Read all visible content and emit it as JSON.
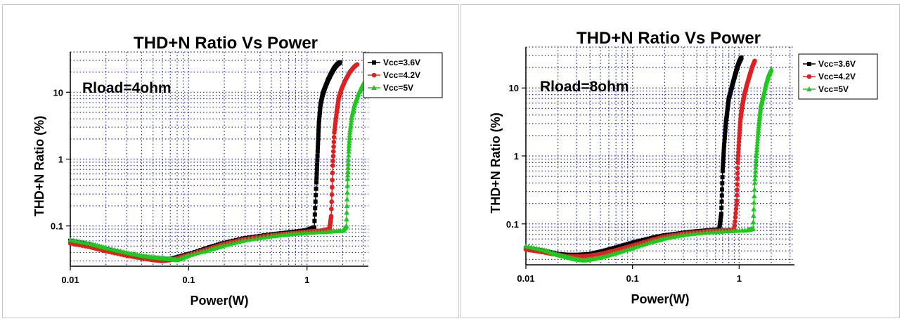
{
  "chart_data": [
    {
      "type": "line",
      "title": "THD+N Ratio Vs Power",
      "annotation": "Rload=4ohm",
      "xlabel": "Power(W)",
      "ylabel": "THD+N Ratio (%)",
      "xscale": "log",
      "yscale": "log",
      "xlim": [
        0.01,
        3.3
      ],
      "ylim": [
        0.025,
        40
      ],
      "xticks": [
        "0.01",
        "0.1",
        "1"
      ],
      "yticks": [
        "0.1",
        "1",
        "10"
      ],
      "grid": true,
      "legend_position": "top-right",
      "series": [
        {
          "name": "Vcc=3.6V",
          "color": "#000000",
          "marker": "square",
          "points": [
            [
              0.01,
              0.06
            ],
            [
              0.015,
              0.052
            ],
            [
              0.02,
              0.045
            ],
            [
              0.03,
              0.038
            ],
            [
              0.04,
              0.034
            ],
            [
              0.05,
              0.033
            ],
            [
              0.06,
              0.032
            ],
            [
              0.07,
              0.032
            ],
            [
              0.08,
              0.034
            ],
            [
              0.1,
              0.038
            ],
            [
              0.15,
              0.048
            ],
            [
              0.2,
              0.056
            ],
            [
              0.3,
              0.066
            ],
            [
              0.5,
              0.075
            ],
            [
              0.7,
              0.08
            ],
            [
              1.0,
              0.087
            ],
            [
              1.15,
              0.095
            ],
            [
              1.2,
              0.45
            ],
            [
              1.23,
              1.3
            ],
            [
              1.26,
              3.5
            ],
            [
              1.3,
              6.5
            ],
            [
              1.35,
              9
            ],
            [
              1.4,
              11
            ],
            [
              1.5,
              15
            ],
            [
              1.6,
              19
            ],
            [
              1.7,
              23
            ],
            [
              1.8,
              26
            ],
            [
              1.9,
              28
            ]
          ]
        },
        {
          "name": "Vcc=4.2V",
          "color": "#e02020",
          "marker": "circle",
          "points": [
            [
              0.01,
              0.055
            ],
            [
              0.015,
              0.048
            ],
            [
              0.02,
              0.042
            ],
            [
              0.03,
              0.036
            ],
            [
              0.04,
              0.033
            ],
            [
              0.05,
              0.031
            ],
            [
              0.06,
              0.03
            ],
            [
              0.07,
              0.031
            ],
            [
              0.08,
              0.033
            ],
            [
              0.1,
              0.037
            ],
            [
              0.15,
              0.046
            ],
            [
              0.2,
              0.054
            ],
            [
              0.3,
              0.064
            ],
            [
              0.5,
              0.073
            ],
            [
              0.7,
              0.077
            ],
            [
              1.0,
              0.082
            ],
            [
              1.3,
              0.085
            ],
            [
              1.55,
              0.09
            ],
            [
              1.6,
              0.14
            ],
            [
              1.65,
              0.8
            ],
            [
              1.7,
              2.5
            ],
            [
              1.78,
              5
            ],
            [
              1.85,
              8
            ],
            [
              1.95,
              11
            ],
            [
              2.1,
              15
            ],
            [
              2.3,
              20
            ],
            [
              2.5,
              24
            ],
            [
              2.65,
              26
            ]
          ]
        },
        {
          "name": "Vcc=5V",
          "color": "#1ec81e",
          "marker": "triangle",
          "points": [
            [
              0.01,
              0.062
            ],
            [
              0.015,
              0.054
            ],
            [
              0.02,
              0.047
            ],
            [
              0.03,
              0.04
            ],
            [
              0.04,
              0.036
            ],
            [
              0.05,
              0.034
            ],
            [
              0.06,
              0.033
            ],
            [
              0.07,
              0.032
            ],
            [
              0.08,
              0.031
            ],
            [
              0.1,
              0.036
            ],
            [
              0.15,
              0.044
            ],
            [
              0.2,
              0.051
            ],
            [
              0.3,
              0.061
            ],
            [
              0.5,
              0.07
            ],
            [
              0.7,
              0.075
            ],
            [
              1.0,
              0.079
            ],
            [
              1.5,
              0.082
            ],
            [
              2.0,
              0.085
            ],
            [
              2.15,
              0.1
            ],
            [
              2.2,
              0.5
            ],
            [
              2.25,
              1.3
            ],
            [
              2.3,
              2.5
            ],
            [
              2.4,
              4.5
            ],
            [
              2.55,
              7
            ],
            [
              2.75,
              10
            ],
            [
              2.95,
              13
            ],
            [
              3.15,
              15
            ]
          ]
        }
      ]
    },
    {
      "type": "line",
      "title": "THD+N Ratio Vs Power",
      "annotation": "Rload=8ohm",
      "xlabel": "Power(W)",
      "ylabel": "THD+N Ratio (%)",
      "xscale": "log",
      "yscale": "log",
      "xlim": [
        0.01,
        3.3
      ],
      "ylim": [
        0.025,
        40
      ],
      "xticks": [
        "0.01",
        "0.1",
        "1"
      ],
      "yticks": [
        "0.1",
        "1",
        "10"
      ],
      "grid": true,
      "legend_position": "top-right",
      "series": [
        {
          "name": "Vcc=3.6V",
          "color": "#000000",
          "marker": "square",
          "points": [
            [
              0.01,
              0.044
            ],
            [
              0.015,
              0.04
            ],
            [
              0.02,
              0.036
            ],
            [
              0.025,
              0.035
            ],
            [
              0.03,
              0.035
            ],
            [
              0.04,
              0.036
            ],
            [
              0.05,
              0.039
            ],
            [
              0.07,
              0.045
            ],
            [
              0.1,
              0.053
            ],
            [
              0.15,
              0.062
            ],
            [
              0.2,
              0.068
            ],
            [
              0.3,
              0.074
            ],
            [
              0.4,
              0.078
            ],
            [
              0.55,
              0.081
            ],
            [
              0.65,
              0.083
            ],
            [
              0.68,
              0.14
            ],
            [
              0.7,
              0.6
            ],
            [
              0.72,
              1.3
            ],
            [
              0.75,
              3
            ],
            [
              0.78,
              5
            ],
            [
              0.8,
              7
            ],
            [
              0.85,
              10
            ],
            [
              0.9,
              14
            ],
            [
              0.95,
              19
            ],
            [
              1.0,
              24
            ],
            [
              1.05,
              28
            ]
          ]
        },
        {
          "name": "Vcc=4.2V",
          "color": "#e02020",
          "marker": "circle",
          "points": [
            [
              0.01,
              0.042
            ],
            [
              0.015,
              0.038
            ],
            [
              0.02,
              0.035
            ],
            [
              0.025,
              0.033
            ],
            [
              0.03,
              0.033
            ],
            [
              0.04,
              0.034
            ],
            [
              0.05,
              0.036
            ],
            [
              0.07,
              0.041
            ],
            [
              0.1,
              0.048
            ],
            [
              0.15,
              0.058
            ],
            [
              0.2,
              0.065
            ],
            [
              0.3,
              0.072
            ],
            [
              0.5,
              0.078
            ],
            [
              0.7,
              0.08
            ],
            [
              0.9,
              0.082
            ],
            [
              0.95,
              0.22
            ],
            [
              0.97,
              0.8
            ],
            [
              1.0,
              1.8
            ],
            [
              1.03,
              3.5
            ],
            [
              1.07,
              5.5
            ],
            [
              1.12,
              8
            ],
            [
              1.18,
              11
            ],
            [
              1.25,
              15
            ],
            [
              1.32,
              20
            ],
            [
              1.4,
              25
            ]
          ]
        },
        {
          "name": "Vcc=5V",
          "color": "#1ec81e",
          "marker": "triangle",
          "points": [
            [
              0.01,
              0.047
            ],
            [
              0.015,
              0.041
            ],
            [
              0.02,
              0.035
            ],
            [
              0.025,
              0.032
            ],
            [
              0.03,
              0.03
            ],
            [
              0.035,
              0.029
            ],
            [
              0.04,
              0.03
            ],
            [
              0.05,
              0.032
            ],
            [
              0.07,
              0.037
            ],
            [
              0.1,
              0.044
            ],
            [
              0.15,
              0.054
            ],
            [
              0.2,
              0.061
            ],
            [
              0.3,
              0.069
            ],
            [
              0.5,
              0.075
            ],
            [
              0.8,
              0.078
            ],
            [
              1.2,
              0.081
            ],
            [
              1.35,
              0.085
            ],
            [
              1.4,
              0.4
            ],
            [
              1.45,
              1.0
            ],
            [
              1.5,
              2
            ],
            [
              1.55,
              3.5
            ],
            [
              1.6,
              5.5
            ],
            [
              1.7,
              8
            ],
            [
              1.8,
              12
            ],
            [
              1.9,
              16
            ],
            [
              2.0,
              19
            ]
          ]
        }
      ]
    }
  ]
}
